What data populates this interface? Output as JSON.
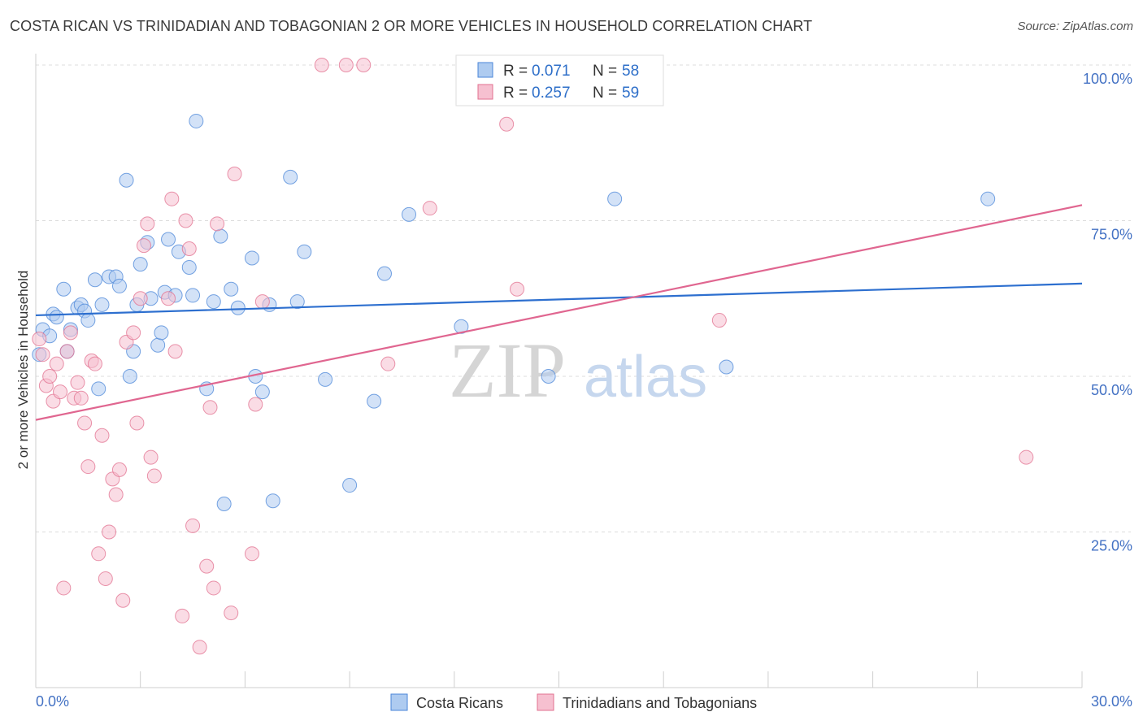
{
  "title": "COSTA RICAN VS TRINIDADIAN AND TOBAGONIAN 2 OR MORE VEHICLES IN HOUSEHOLD CORRELATION CHART",
  "source": "Source: ZipAtlas.com",
  "watermark": {
    "zip": "ZIP",
    "atlas": "atlas"
  },
  "colors": {
    "blue": "#4a86d8",
    "blue_fill": "#aecbf0",
    "pink": "#e2708f",
    "pink_fill": "#f6c0d0",
    "tick": "#4472c4"
  },
  "legend": {
    "r_label": "R =",
    "n_label": "N =",
    "rows": [
      {
        "r": "0.071",
        "n": "58",
        "color": "blue"
      },
      {
        "r": "0.257",
        "n": "59",
        "color": "pink"
      }
    ]
  },
  "bottom_legend": [
    "Costa Ricans",
    "Trinidadians and Tobagonians"
  ],
  "chart_data": {
    "type": "scatter",
    "ylabel": "2 or more Vehicles in Household",
    "xlim": [
      0,
      30
    ],
    "ylim": [
      0,
      100
    ],
    "x_tick_labels": [
      "0.0%",
      "30.0%"
    ],
    "y_ticks": [
      25,
      50,
      75,
      100
    ],
    "y_tick_labels": [
      "25.0%",
      "50.0%",
      "75.0%",
      "100.0%"
    ],
    "grid": true,
    "series": [
      {
        "name": "Costa Ricans",
        "color": "blue",
        "trend": [
          [
            0,
            59.8
          ],
          [
            30,
            64.9
          ]
        ],
        "points": [
          [
            0.1,
            53.5
          ],
          [
            0.2,
            57.5
          ],
          [
            0.4,
            56.5
          ],
          [
            0.5,
            60.0
          ],
          [
            0.6,
            59.5
          ],
          [
            0.8,
            64.0
          ],
          [
            0.9,
            54.0
          ],
          [
            1.0,
            57.5
          ],
          [
            1.2,
            61.0
          ],
          [
            1.3,
            61.5
          ],
          [
            1.4,
            60.5
          ],
          [
            1.5,
            59.0
          ],
          [
            1.7,
            65.5
          ],
          [
            1.8,
            48.0
          ],
          [
            1.9,
            61.5
          ],
          [
            2.1,
            66.0
          ],
          [
            2.3,
            66.0
          ],
          [
            2.4,
            64.5
          ],
          [
            2.6,
            81.5
          ],
          [
            2.7,
            50.0
          ],
          [
            2.8,
            54.0
          ],
          [
            2.9,
            61.5
          ],
          [
            3.0,
            68.0
          ],
          [
            3.2,
            71.5
          ],
          [
            3.3,
            62.5
          ],
          [
            3.5,
            55.0
          ],
          [
            3.6,
            57.0
          ],
          [
            3.7,
            63.5
          ],
          [
            3.8,
            72.0
          ],
          [
            4.0,
            63.0
          ],
          [
            4.1,
            70.0
          ],
          [
            4.4,
            67.5
          ],
          [
            4.5,
            63.0
          ],
          [
            4.6,
            91.0
          ],
          [
            4.9,
            48.0
          ],
          [
            5.1,
            62.0
          ],
          [
            5.3,
            72.5
          ],
          [
            5.4,
            29.5
          ],
          [
            5.6,
            64.0
          ],
          [
            5.8,
            61.0
          ],
          [
            6.2,
            69.0
          ],
          [
            6.3,
            50.0
          ],
          [
            6.5,
            47.5
          ],
          [
            6.7,
            61.5
          ],
          [
            6.8,
            30.0
          ],
          [
            7.3,
            82.0
          ],
          [
            7.5,
            62.0
          ],
          [
            7.7,
            70.0
          ],
          [
            8.3,
            49.5
          ],
          [
            9.0,
            32.5
          ],
          [
            9.7,
            46.0
          ],
          [
            10.0,
            66.5
          ],
          [
            10.7,
            76.0
          ],
          [
            12.2,
            58.0
          ],
          [
            14.7,
            50.0
          ],
          [
            16.6,
            78.5
          ],
          [
            19.8,
            51.5
          ],
          [
            27.3,
            78.5
          ]
        ]
      },
      {
        "name": "Trinidadians and Tobagonians",
        "color": "pink",
        "trend": [
          [
            0,
            43.0
          ],
          [
            30,
            77.5
          ]
        ],
        "points": [
          [
            0.1,
            56.0
          ],
          [
            0.2,
            53.5
          ],
          [
            0.3,
            48.5
          ],
          [
            0.4,
            50.0
          ],
          [
            0.5,
            46.0
          ],
          [
            0.6,
            52.0
          ],
          [
            0.7,
            47.5
          ],
          [
            0.8,
            16.0
          ],
          [
            0.9,
            54.0
          ],
          [
            1.0,
            57.0
          ],
          [
            1.1,
            46.5
          ],
          [
            1.2,
            49.0
          ],
          [
            1.3,
            46.5
          ],
          [
            1.4,
            42.5
          ],
          [
            1.5,
            35.5
          ],
          [
            1.6,
            52.5
          ],
          [
            1.7,
            52.0
          ],
          [
            1.8,
            21.5
          ],
          [
            1.9,
            40.5
          ],
          [
            2.0,
            17.5
          ],
          [
            2.1,
            25.0
          ],
          [
            2.2,
            33.5
          ],
          [
            2.3,
            31.0
          ],
          [
            2.4,
            35.0
          ],
          [
            2.5,
            14.0
          ],
          [
            2.6,
            55.5
          ],
          [
            2.8,
            57.0
          ],
          [
            2.9,
            42.5
          ],
          [
            3.0,
            62.5
          ],
          [
            3.1,
            71.0
          ],
          [
            3.2,
            74.5
          ],
          [
            3.3,
            37.0
          ],
          [
            3.4,
            34.0
          ],
          [
            3.8,
            62.5
          ],
          [
            3.9,
            78.5
          ],
          [
            4.0,
            54.0
          ],
          [
            4.2,
            11.5
          ],
          [
            4.3,
            75.0
          ],
          [
            4.4,
            70.5
          ],
          [
            4.5,
            26.0
          ],
          [
            4.7,
            6.5
          ],
          [
            4.9,
            19.5
          ],
          [
            5.0,
            45.0
          ],
          [
            5.1,
            16.0
          ],
          [
            5.2,
            74.5
          ],
          [
            5.6,
            12.0
          ],
          [
            5.7,
            82.5
          ],
          [
            6.2,
            21.5
          ],
          [
            6.3,
            45.5
          ],
          [
            6.5,
            62.0
          ],
          [
            8.2,
            100.0
          ],
          [
            8.9,
            100.0
          ],
          [
            9.4,
            100.0
          ],
          [
            10.1,
            52.0
          ],
          [
            11.3,
            77.0
          ],
          [
            13.5,
            90.5
          ],
          [
            13.8,
            64.0
          ],
          [
            19.6,
            59.0
          ],
          [
            28.4,
            37.0
          ]
        ]
      }
    ]
  }
}
